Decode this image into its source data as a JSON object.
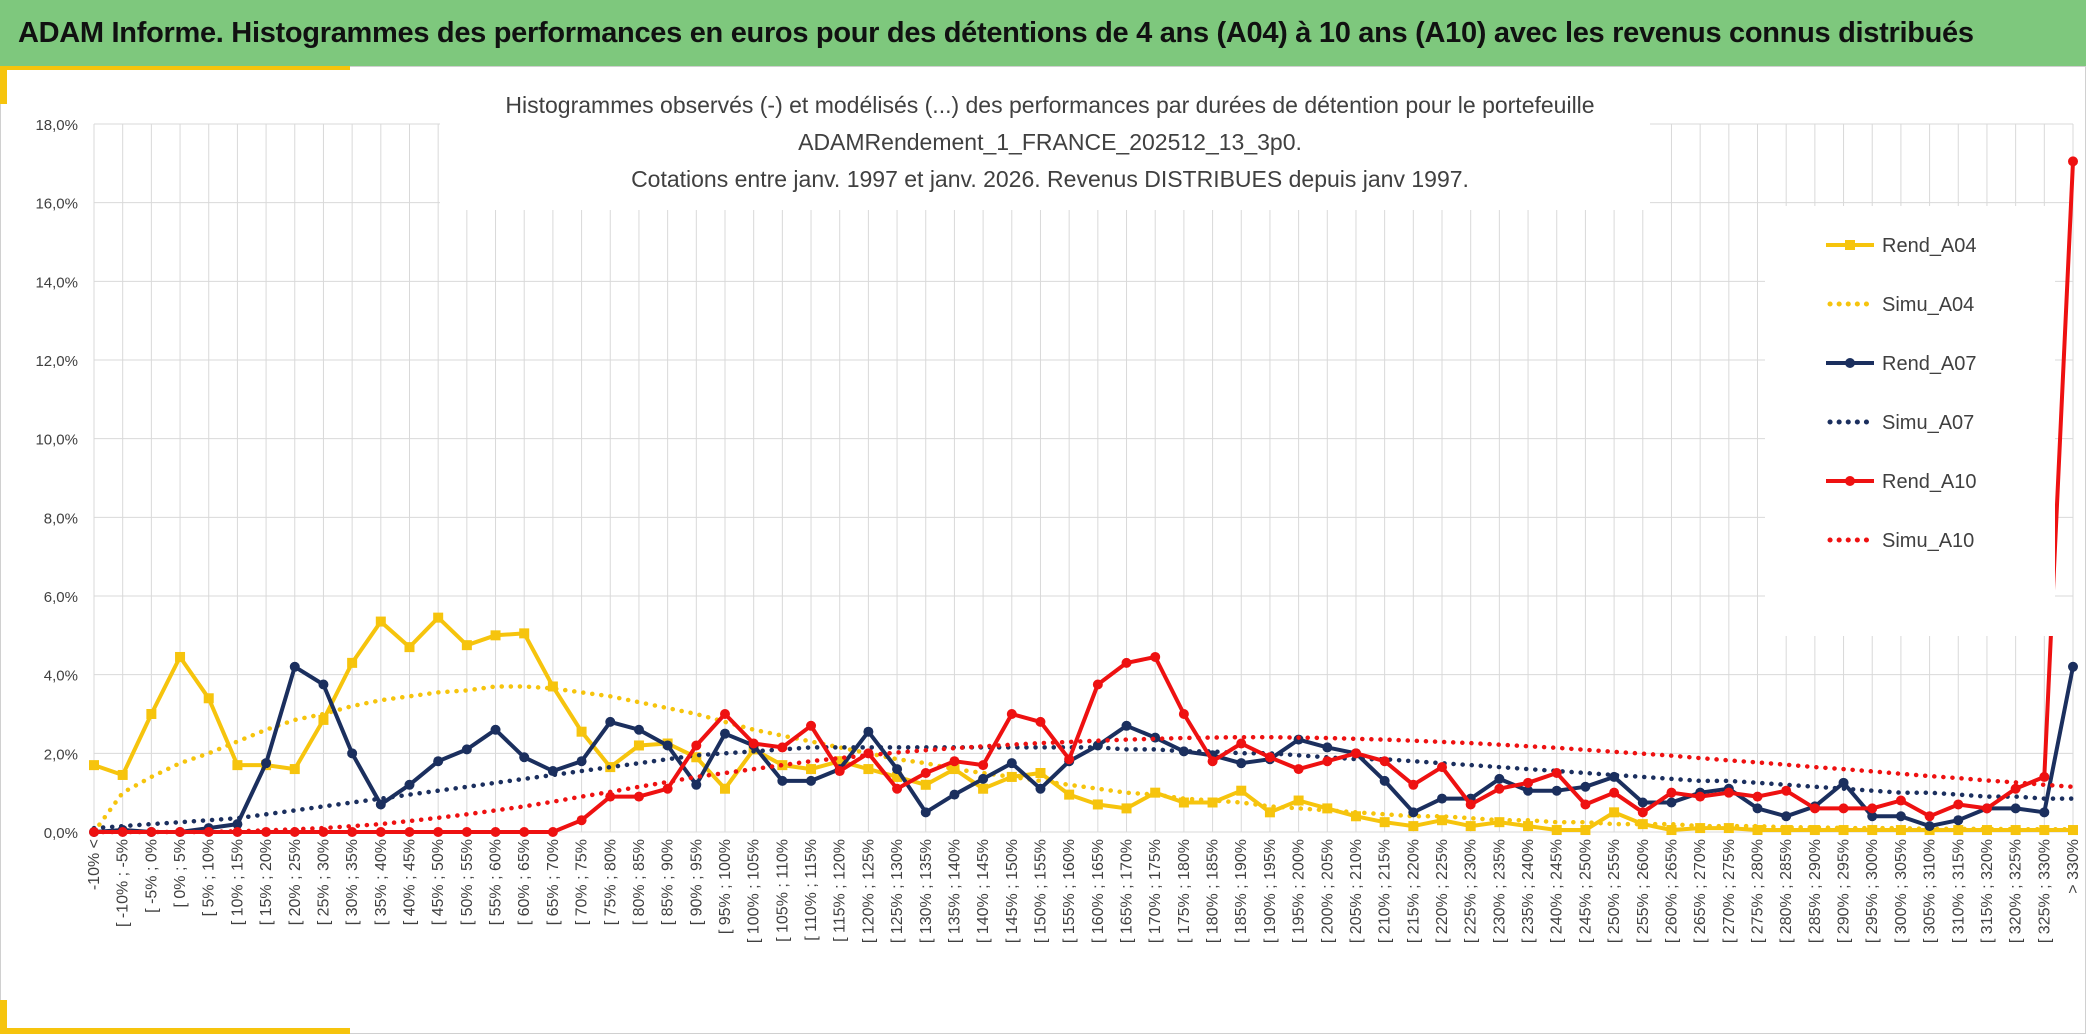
{
  "header": {
    "title": "ADAM Informe. Histogrammes des performances en euros pour des détentions de 4 ans (A04) à 10 ans (A10) avec les revenus connus distribués"
  },
  "colors": {
    "header_bg": "#7ec87d",
    "corner": "#f6c40d"
  },
  "chart_data": {
    "type": "line",
    "title_lines": [
      "Histogrammes observés (-) et modélisés (...) des performances par durées de détention pour le portefeuille",
      "ADAMRendement_1_FRANCE_202512_13_3p0.",
      "Cotations entre janv. 1997 et janv. 2026. Revenus DISTRIBUES depuis janv 1997."
    ],
    "xlabel": "",
    "ylabel": "",
    "ylim": [
      0,
      18
    ],
    "yticks": [
      "0,0%",
      "2,0%",
      "4,0%",
      "6,0%",
      "8,0%",
      "10,0%",
      "12,0%",
      "14,0%",
      "16,0%",
      "18,0%"
    ],
    "grid": true,
    "legend_position": "right",
    "categories": [
      "-10% <",
      "[ -10% ; -5%",
      "[ -5% ; 0%",
      "[ 0% ; 5%",
      "[ 5% ; 10%",
      "[ 10% ; 15%",
      "[ 15% ; 20%",
      "[ 20% ; 25%",
      "[ 25% ; 30%",
      "[ 30% ; 35%",
      "[ 35% ; 40%",
      "[ 40% ; 45%",
      "[ 45% ; 50%",
      "[ 50% ; 55%",
      "[ 55% ; 60%",
      "[ 60% ; 65%",
      "[ 65% ; 70%",
      "[ 70% ; 75%",
      "[ 75% ; 80%",
      "[ 80% ; 85%",
      "[ 85% ; 90%",
      "[ 90% ; 95%",
      "[ 95% ; 100%",
      "[ 100% ; 105%",
      "[ 105% ; 110%",
      "[ 110% ; 115%",
      "[ 115% ; 120%",
      "[ 120% ; 125%",
      "[ 125% ; 130%",
      "[ 130% ; 135%",
      "[ 135% ; 140%",
      "[ 140% ; 145%",
      "[ 145% ; 150%",
      "[ 150% ; 155%",
      "[ 155% ; 160%",
      "[ 160% ; 165%",
      "[ 165% ; 170%",
      "[ 170% ; 175%",
      "[ 175% ; 180%",
      "[ 180% ; 185%",
      "[ 185% ; 190%",
      "[ 190% ; 195%",
      "[ 195% ; 200%",
      "[ 200% ; 205%",
      "[ 205% ; 210%",
      "[ 210% ; 215%",
      "[ 215% ; 220%",
      "[ 220% ; 225%",
      "[ 225% ; 230%",
      "[ 230% ; 235%",
      "[ 235% ; 240%",
      "[ 240% ; 245%",
      "[ 245% ; 250%",
      "[ 250% ; 255%",
      "[ 255% ; 260%",
      "[ 260% ; 265%",
      "[ 265% ; 270%",
      "[ 270% ; 275%",
      "[ 275% ; 280%",
      "[ 280% ; 285%",
      "[ 285% ; 290%",
      "[ 290% ; 295%",
      "[ 295% ; 300%",
      "[ 300% ; 305%",
      "[ 305% ; 310%",
      "[ 310% ; 315%",
      "[ 315% ; 320%",
      "[ 320% ; 325%",
      "[ 325% ; 330%",
      "> 330%"
    ],
    "series": [
      {
        "name": "Rend_A04",
        "color": "#f6c40d",
        "style": "solid",
        "marker": "square",
        "values": [
          1.7,
          1.45,
          3.0,
          4.45,
          3.4,
          1.7,
          1.7,
          1.6,
          2.85,
          4.3,
          5.35,
          4.7,
          5.45,
          4.75,
          5.0,
          5.05,
          3.7,
          2.55,
          1.65,
          2.2,
          2.25,
          1.9,
          1.1,
          2.1,
          1.7,
          1.6,
          1.8,
          1.6,
          1.4,
          1.2,
          1.6,
          1.1,
          1.4,
          1.5,
          0.95,
          0.7,
          0.6,
          1.0,
          0.75,
          0.75,
          1.05,
          0.5,
          0.8,
          0.6,
          0.4,
          0.25,
          0.15,
          0.3,
          0.15,
          0.25,
          0.15,
          0.05,
          0.05,
          0.5,
          0.2,
          0.05,
          0.1,
          0.1,
          0.05,
          0.05,
          0.05,
          0.05,
          0.05,
          0.05,
          0.05,
          0.05,
          0.05,
          0.05,
          0.05,
          0.05
        ]
      },
      {
        "name": "Simu_A04",
        "color": "#f6c40d",
        "style": "dotted",
        "values": [
          0.0,
          1.0,
          1.4,
          1.75,
          2.0,
          2.3,
          2.6,
          2.85,
          3.0,
          3.2,
          3.35,
          3.45,
          3.55,
          3.6,
          3.7,
          3.7,
          3.65,
          3.55,
          3.45,
          3.3,
          3.15,
          3.0,
          2.8,
          2.6,
          2.45,
          2.3,
          2.15,
          2.0,
          1.85,
          1.75,
          1.6,
          1.5,
          1.4,
          1.3,
          1.2,
          1.1,
          1.0,
          0.95,
          0.85,
          0.8,
          0.75,
          0.65,
          0.6,
          0.55,
          0.5,
          0.45,
          0.4,
          0.4,
          0.35,
          0.3,
          0.3,
          0.25,
          0.25,
          0.2,
          0.2,
          0.2,
          0.15,
          0.15,
          0.15,
          0.12,
          0.12,
          0.1,
          0.1,
          0.1,
          0.08,
          0.08,
          0.08,
          0.07,
          0.07,
          0.07
        ]
      },
      {
        "name": "Rend_A07",
        "color": "#1b2f5e",
        "style": "solid",
        "marker": "circle",
        "values": [
          0.0,
          0.05,
          0.0,
          0.0,
          0.1,
          0.2,
          1.75,
          4.2,
          3.75,
          2.0,
          0.7,
          1.2,
          1.8,
          2.1,
          2.6,
          1.9,
          1.55,
          1.8,
          2.8,
          2.6,
          2.2,
          1.2,
          2.5,
          2.2,
          1.3,
          1.3,
          1.6,
          2.55,
          1.6,
          0.5,
          0.95,
          1.35,
          1.75,
          1.1,
          1.8,
          2.2,
          2.7,
          2.4,
          2.05,
          1.95,
          1.75,
          1.85,
          2.35,
          2.15,
          2.0,
          1.3,
          0.5,
          0.85,
          0.85,
          1.35,
          1.05,
          1.05,
          1.15,
          1.4,
          0.75,
          0.75,
          1.0,
          1.1,
          0.6,
          0.4,
          0.65,
          1.25,
          0.4,
          0.4,
          0.15,
          0.3,
          0.6,
          0.6,
          0.5,
          4.2
        ]
      },
      {
        "name": "Simu_A07",
        "color": "#1b2f5e",
        "style": "dotted",
        "values": [
          0.1,
          0.15,
          0.2,
          0.25,
          0.3,
          0.35,
          0.45,
          0.55,
          0.65,
          0.75,
          0.85,
          0.95,
          1.05,
          1.15,
          1.25,
          1.35,
          1.45,
          1.55,
          1.65,
          1.75,
          1.85,
          1.95,
          2.0,
          2.05,
          2.1,
          2.15,
          2.15,
          2.15,
          2.15,
          2.15,
          2.15,
          2.15,
          2.15,
          2.15,
          2.15,
          2.15,
          2.1,
          2.1,
          2.05,
          2.05,
          2.0,
          2.0,
          1.95,
          1.9,
          1.85,
          1.85,
          1.8,
          1.75,
          1.7,
          1.65,
          1.6,
          1.55,
          1.5,
          1.45,
          1.4,
          1.35,
          1.3,
          1.3,
          1.25,
          1.2,
          1.15,
          1.1,
          1.05,
          1.0,
          1.0,
          0.95,
          0.9,
          0.9,
          0.85,
          0.85
        ]
      },
      {
        "name": "Rend_A10",
        "color": "#ee1111",
        "style": "solid",
        "marker": "circle",
        "values": [
          0.0,
          0.0,
          0.0,
          0.0,
          0.0,
          0.0,
          0.0,
          0.0,
          0.0,
          0.0,
          0.0,
          0.0,
          0.0,
          0.0,
          0.0,
          0.0,
          0.0,
          0.3,
          0.9,
          0.9,
          1.1,
          2.2,
          3.0,
          2.25,
          2.15,
          2.7,
          1.55,
          2.0,
          1.1,
          1.5,
          1.8,
          1.7,
          3.0,
          2.8,
          1.85,
          3.75,
          4.3,
          4.45,
          3.0,
          1.8,
          2.25,
          1.9,
          1.6,
          1.8,
          2.0,
          1.8,
          1.2,
          1.65,
          0.7,
          1.1,
          1.25,
          1.5,
          0.7,
          1.0,
          0.5,
          1.0,
          0.9,
          1.0,
          0.9,
          1.05,
          0.6,
          0.6,
          0.6,
          0.8,
          0.4,
          0.7,
          0.6,
          1.1,
          1.4,
          17.05
        ]
      },
      {
        "name": "Simu_A10",
        "color": "#ee1111",
        "style": "dotted",
        "values": [
          0.0,
          0.0,
          0.0,
          0.0,
          0.0,
          0.02,
          0.04,
          0.07,
          0.1,
          0.15,
          0.2,
          0.28,
          0.36,
          0.45,
          0.55,
          0.65,
          0.77,
          0.9,
          1.02,
          1.15,
          1.27,
          1.4,
          1.5,
          1.6,
          1.7,
          1.8,
          1.88,
          1.95,
          2.02,
          2.08,
          2.13,
          2.18,
          2.22,
          2.26,
          2.29,
          2.32,
          2.35,
          2.37,
          2.39,
          2.4,
          2.41,
          2.41,
          2.4,
          2.39,
          2.37,
          2.35,
          2.32,
          2.29,
          2.26,
          2.22,
          2.18,
          2.14,
          2.09,
          2.04,
          1.99,
          1.94,
          1.88,
          1.82,
          1.77,
          1.71,
          1.65,
          1.6,
          1.54,
          1.48,
          1.42,
          1.37,
          1.31,
          1.26,
          1.2,
          1.15
        ]
      }
    ]
  }
}
